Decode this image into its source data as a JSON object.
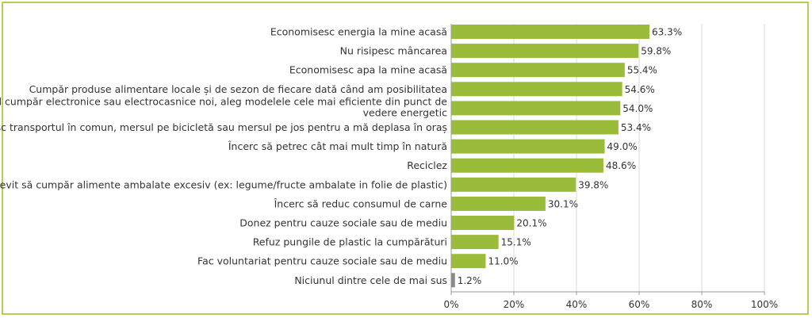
{
  "chart_data": {
    "type": "bar",
    "orientation": "horizontal",
    "categories": [
      "Economisesc energia la mine acasă",
      "Nu risipesc mâncarea",
      "Economisesc apa la mine acasă",
      "Cumpăr produse alimentare locale și de sezon de fiecare dată când am posibilitatea",
      "Când cumpăr electronice sau electrocasnice noi, aleg modelele cele mai eficiente din punct de vedere energetic",
      "Folosesc transportul în comun, mersul pe bicicletă sau mersul pe jos pentru a mă deplasa în oraș",
      "Încerc să petrec cât mai mult timp în natură",
      "Reciclez",
      "Încerc să evit să cumpăr alimente ambalate excesiv (ex: legume/fructe ambalate in folie de plastic)",
      "Încerc să reduc consumul de carne",
      "Donez pentru cauze sociale sau de mediu",
      "Refuz pungile de plastic la cumpărături",
      "Fac voluntariat pentru cauze sociale sau de mediu",
      "Niciunul dintre cele de mai sus"
    ],
    "category_lines": [
      [
        "Economisesc energia la mine acasă"
      ],
      [
        "Nu risipesc mâncarea"
      ],
      [
        "Economisesc apa la mine acasă"
      ],
      [
        "Cumpăr produse alimentare locale și de sezon de fiecare dată când am posibilitatea"
      ],
      [
        "Când cumpăr electronice sau electrocasnice noi, aleg modelele cele mai eficiente din punct de",
        "vedere energetic"
      ],
      [
        "Folosesc transportul în comun, mersul pe bicicletă sau mersul pe jos pentru a mă deplasa în oraș"
      ],
      [
        "Încerc să petrec cât mai mult timp în natură"
      ],
      [
        "Reciclez"
      ],
      [
        "Încerc să evit să cumpăr alimente ambalate excesiv (ex: legume/fructe ambalate in folie de plastic)"
      ],
      [
        "Încerc să reduc consumul de carne"
      ],
      [
        "Donez pentru cauze sociale sau de mediu"
      ],
      [
        "Refuz pungile de plastic la cumpărături"
      ],
      [
        "Fac voluntariat pentru cauze sociale sau de mediu"
      ],
      [
        "Niciunul dintre cele de mai sus"
      ]
    ],
    "values": [
      63.3,
      59.8,
      55.4,
      54.6,
      54.0,
      53.4,
      49.0,
      48.6,
      39.8,
      30.1,
      20.1,
      15.1,
      11.0,
      1.2
    ],
    "value_labels": [
      "63.3%",
      "59.8%",
      "55.4%",
      "54.6%",
      "54.0%",
      "53.4%",
      "49.0%",
      "48.6%",
      "39.8%",
      "30.1%",
      "20.1%",
      "15.1%",
      "11.0%",
      "1.2%"
    ],
    "bar_colors": [
      "#9bbb3b",
      "#9bbb3b",
      "#9bbb3b",
      "#9bbb3b",
      "#9bbb3b",
      "#9bbb3b",
      "#9bbb3b",
      "#9bbb3b",
      "#9bbb3b",
      "#9bbb3b",
      "#9bbb3b",
      "#9bbb3b",
      "#9bbb3b",
      "#8a8a8a"
    ],
    "x_ticks": [
      0,
      20,
      40,
      60,
      80,
      100
    ],
    "x_tick_labels": [
      "0%",
      "20%",
      "40%",
      "60%",
      "80%",
      "100%"
    ],
    "xlim": [
      0,
      100
    ],
    "grid": true,
    "title": "",
    "xlabel": "",
    "ylabel": ""
  },
  "colors": {
    "frame": "#b3cf5a",
    "grid": "#d9d9d9",
    "axis": "#999999",
    "text": "#333333"
  }
}
